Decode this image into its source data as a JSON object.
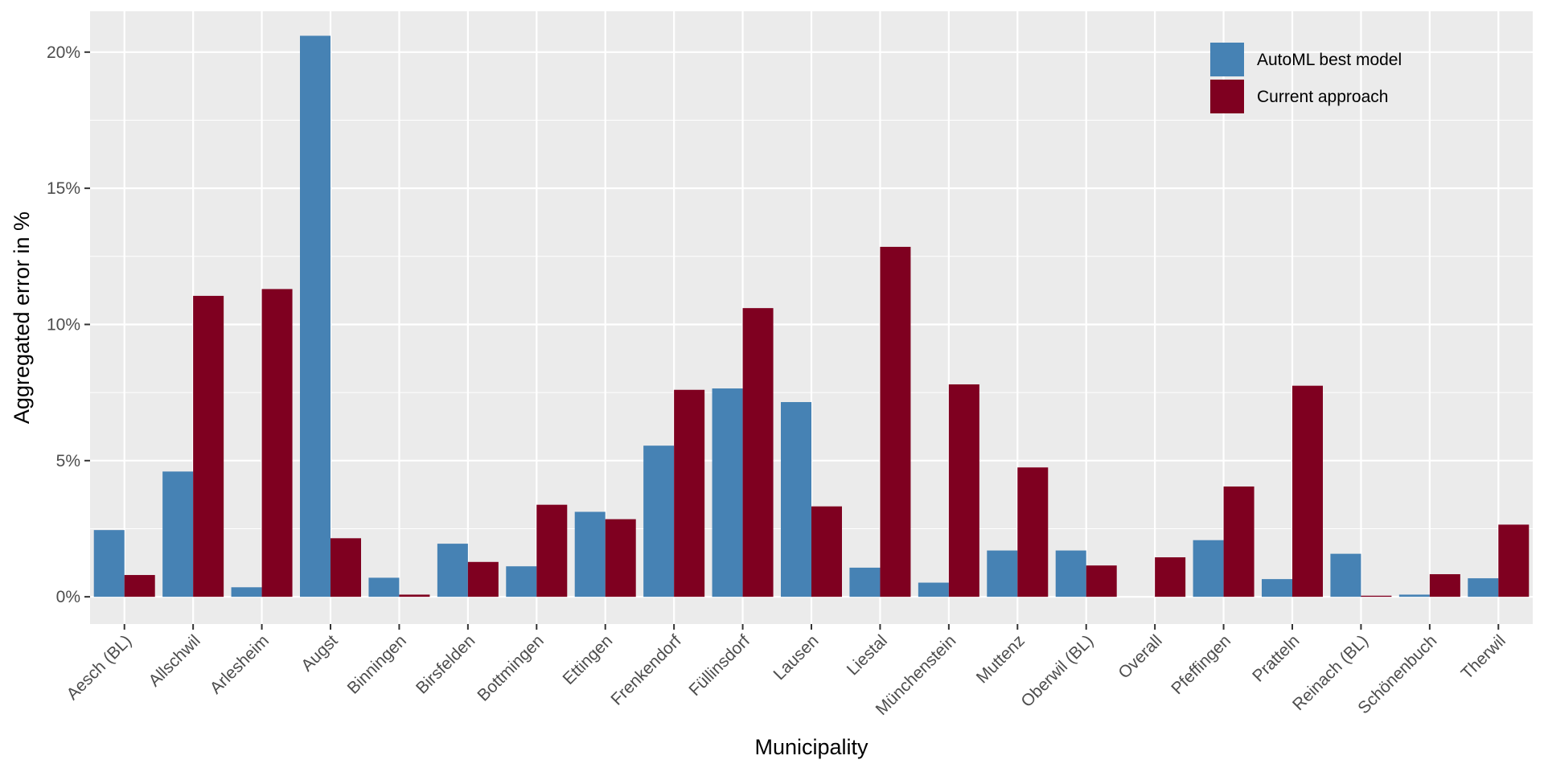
{
  "chart_data": {
    "type": "bar",
    "xlabel": "Municipality",
    "ylabel": "Aggregated error in %",
    "ylim": [
      -1.0,
      21.5
    ],
    "yticks": [
      0,
      5,
      10,
      15,
      20
    ],
    "ytick_labels": [
      "0%",
      "5%",
      "10%",
      "15%",
      "20%"
    ],
    "grid": true,
    "legend_position": "top-right",
    "categories": [
      "Aesch (BL)",
      "Allschwil",
      "Arlesheim",
      "Augst",
      "Binningen",
      "Birsfelden",
      "Bottmingen",
      "Ettingen",
      "Frenkendorf",
      "Füllinsdorf",
      "Lausen",
      "Liestal",
      "Münchenstein",
      "Muttenz",
      "Oberwil (BL)",
      "Overall",
      "Pfeffingen",
      "Pratteln",
      "Reinach (BL)",
      "Schönenbuch",
      "Therwil"
    ],
    "series": [
      {
        "name": "AutoML best model",
        "color": "#4682B4",
        "values": [
          2.45,
          4.6,
          0.35,
          20.6,
          0.7,
          1.95,
          1.12,
          3.12,
          5.55,
          7.65,
          7.15,
          1.07,
          0.52,
          1.7,
          1.7,
          0.0,
          2.08,
          0.65,
          1.58,
          0.08,
          0.68
        ]
      },
      {
        "name": "Current approach",
        "color": "#7F0020",
        "values": [
          0.8,
          11.05,
          11.3,
          2.15,
          0.08,
          1.28,
          3.38,
          2.85,
          7.6,
          10.6,
          3.32,
          12.85,
          7.8,
          4.75,
          1.15,
          1.45,
          4.05,
          7.75,
          0.04,
          0.83,
          2.65
        ]
      }
    ],
    "colors": {
      "panel_background": "#EBEBEB",
      "grid": "#FFFFFF",
      "tick_text": "#4D4D4D"
    }
  }
}
